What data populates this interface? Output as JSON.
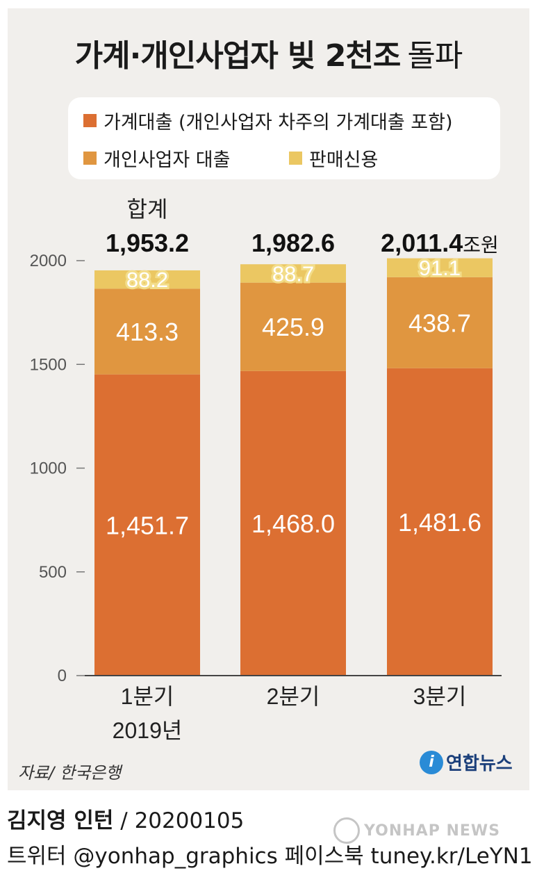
{
  "title": {
    "main": "가계·개인사업자 빚 2천조",
    "suffix": "돌파"
  },
  "legend": [
    {
      "label": "가계대출 (개인사업자 차주의 가계대출 포함)",
      "color": "#dc6f32"
    },
    {
      "label": "개인사업자 대출",
      "color": "#e09640"
    },
    {
      "label": "판매신용",
      "color": "#ebc762"
    }
  ],
  "chart_data": {
    "type": "bar",
    "stacked": true,
    "categories": [
      "1분기",
      "2분기",
      "3분기"
    ],
    "x_group_label": "2019년",
    "series": [
      {
        "name": "가계대출 (개인사업자 차주의 가계대출 포함)",
        "values": [
          1451.7,
          1468.0,
          1481.6
        ],
        "labels": [
          "1,451.7",
          "1,468.0",
          "1,481.6"
        ],
        "color": "#dc6f32"
      },
      {
        "name": "개인사업자 대출",
        "values": [
          413.3,
          425.9,
          438.7
        ],
        "labels": [
          "413.3",
          "425.9",
          "438.7"
        ],
        "color": "#e09640"
      },
      {
        "name": "판매신용",
        "values": [
          88.2,
          88.7,
          91.1
        ],
        "labels": [
          "88.2",
          "88.7",
          "91.1"
        ],
        "color": "#ebc762"
      }
    ],
    "totals": [
      1953.2,
      1982.6,
      2011.4
    ],
    "total_labels": [
      "1,953.2",
      "1,982.6",
      "2,011.4"
    ],
    "total_caption": "합계",
    "unit": "조원",
    "yticks": [
      0,
      500,
      1000,
      1500,
      2000
    ],
    "ylim": [
      0,
      2000
    ],
    "grid": false
  },
  "source": "자료/ 한국은행",
  "logo": {
    "mark": "i",
    "text": "연합뉴스"
  },
  "credit": {
    "author": "김지영 인턴",
    "date": "/ 20200105",
    "line2": "트위터 @yonhap_graphics  페이스북 tuney.kr/LeYN1"
  },
  "watermark": "YONHAP NEWS"
}
